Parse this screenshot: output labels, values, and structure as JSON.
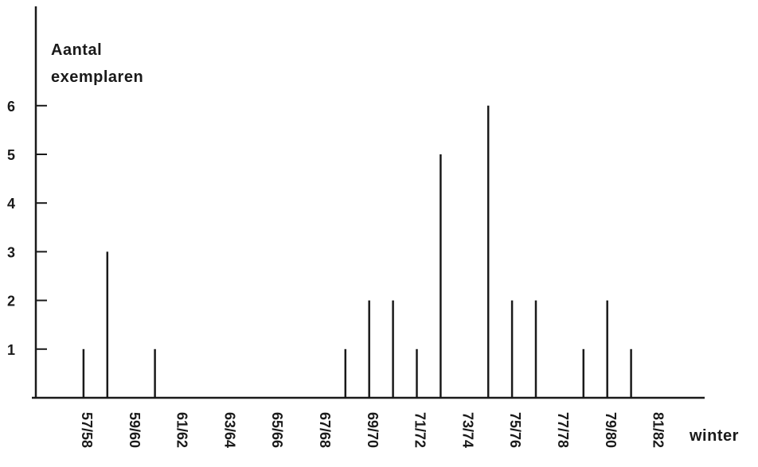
{
  "chart_data": {
    "type": "bar",
    "ylabel_lines": [
      "Aantal",
      "exemplaren"
    ],
    "xlabel": "winter",
    "y_ticks": [
      1,
      2,
      3,
      4,
      5,
      6
    ],
    "x_tick_labels": [
      "57/58",
      "59/60",
      "61/62",
      "63/64",
      "65/66",
      "67/68",
      "69/70",
      "71/72",
      "73/74",
      "75/76",
      "77/78",
      "79/80",
      "81/82"
    ],
    "categories": [
      "58/59",
      "59/60",
      "61/62",
      "69/70",
      "70/71",
      "71/72",
      "72/73",
      "73/74",
      "75/76",
      "76/77",
      "77/78",
      "79/80",
      "80/81",
      "81/82"
    ],
    "values": [
      1,
      3,
      1,
      1,
      2,
      2,
      1,
      5,
      6,
      2,
      2,
      1,
      2,
      1
    ],
    "ylim": [
      0,
      7
    ],
    "grid": false,
    "legend": "none"
  }
}
